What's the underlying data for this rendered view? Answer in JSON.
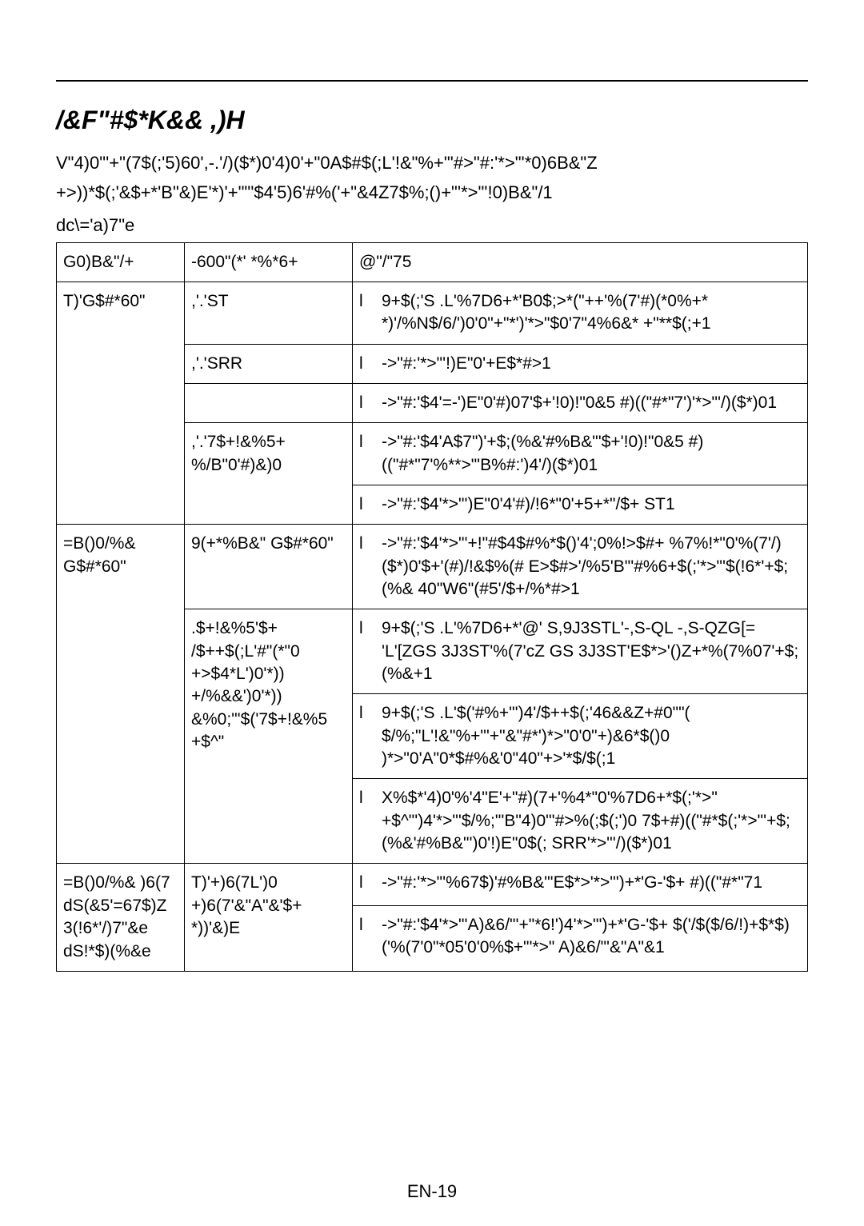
{
  "title": "/&F\"#$*K&& ,)H",
  "para1": "V\"4)0\"'+\"(7$(;'5)60',-.'/)($*)0'4)0'+\"0A$#$(;L'!&\"%+\"'#>\"#:'*>\"'*0)6B&\"Z",
  "para2": "+>))*$(;'&$+*'B\"&)E'*)'+\"\"'$4'5)6'#%('+\"&4Z7$%;()+\"'*>\"'!0)B&\"/1",
  "note": "dc\\='a)7\"e",
  "header": {
    "c1": "G0)B&\"/+",
    "c2": "-600\"(*' *%*6+",
    "c3": "@\"/\"75"
  },
  "group1_label": "T)'G$#*60\"",
  "g1r1_sub": ",'.'ST",
  "g1r1_txt": "9+$(;'S .L'%7D6+*'B0$;>*(\"++'%(7'#)(*0%+* *)'/%N$/6/')0'0\"+\"*')'*>\"$0'7\"4%6&* +\"**$(;+1",
  "g1r2_sub": ",'.'SRR",
  "g1r2_txt": "->\"#:'*>\"'!)E\"0'+E$*#>1",
  "g1r3_txt": "->\"#:'$4'=-')E\"0'#)07'$+'!0)!\"0&5 #)((\"#*\"7')'*>\"'/)($*)01",
  "g1r4_sub": ",'.'7$+!&%5+ %/B\"0'#)&)0",
  "g1r4_txt": "->\"#:'$4'A$7\")'+$;(%&'#%B&\"'$+'!0)!\"0&5 #)((\"#*\"7'%**>\"'B%#:')4'/)($*)01",
  "g1r5_txt": "->\"#:'$4'*>\"')E\"0'4'#)/!6*\"0'+5+*\"/$+ ST1",
  "group2_label": "=B()0/%& G$#*60\"",
  "g2r1_sub": "9(+*%B&\" G$#*60\"",
  "g2r1_txt": "->\"#:'$4'*>\"'+!\"#$4$#%*$()'4';0%!>$#+ %7%!*\"0'%(7'/)($*)0'$+'(#)/!&$%(# E>$#>'/%5'B\"'#%6+$(;'*>\"'$(!6*'+$;(%& 40\"W6\"(#5'/$+/%*#>1",
  "g2r2_sub": ".$+!&%5'$+ /$++$(;L'#\"(*\"0 +>$4*L')0'*)) +/%&&')0'*)) &%0;\"'$('7$+!&%5 +$^\"",
  "g2r2_txt": "9+$(;'S .L'%7D6+*'@' S,9J3STL'-,S-QL -,S-QZG[= 'L'[ZGS 3J3ST'%(7'cZ GS 3J3ST'E$*>'()Z+*%(7%07'+$;(%&+1",
  "g2r3_txt": "9+$(;'S .L'$('#%+\"')4'/$++$(;'46&&Z+#0\"\"( $/%;\"L'!&\"%+\"'+\"&\"#*')*>\"0'0\"+)&6*$()0 )*>\"0'A\"0*$#%&'0\"40\"+>'*$/$(;1",
  "g2r4_txt": "X%$*'4)0'%'4\"E'+\"#)(7+'%4*\"0'%7D6+*$(;'*>\" +$^\"')4'*>\"'$/%;\"'B\"4)0\"'#>%(;$(;')0 7$+#)((\"#*$(;'*>\"'+$;(%&'#%B&\"')0'!)E\"0$(; SRR'*>\"'/)($*)01",
  "group3_label": "=B()0/%& )6(7 dS(&5'=67$)Z 3(!6*'/)7\"&e dS!*$)(%&e",
  "g3r1_sub": "T)'+)6(7L')0 +)6(7'&\"A\"&'$+ *))'&)E",
  "g3r1_txt": "->\"#:'*>\"'%67$)'#%B&\"'E$*>'*>\"')+*'G-'$+ #)((\"#*\"71",
  "g3r2_txt": "->\"#:'$4'*>\"'A)&6/\"'+\"*6!')4'*>\"')+*'G-'$+ $('/$($/6/!)+$*$)('%(7'0\"*05'0'0%$+\"'*>\" A)&6/\"'&\"A\"&1",
  "page": "EN-19"
}
